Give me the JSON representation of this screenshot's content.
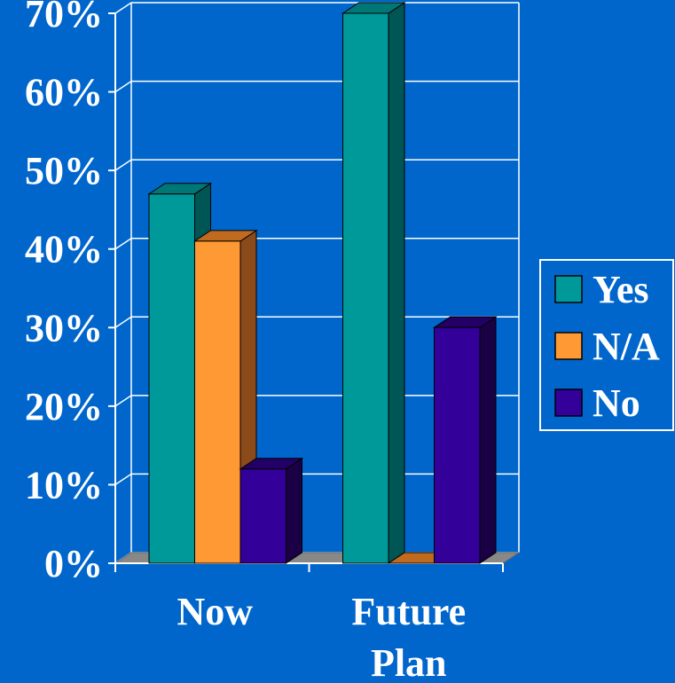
{
  "chart_data": {
    "type": "bar",
    "title": "",
    "xlabel": "",
    "ylabel": "",
    "categories": [
      [
        "Now"
      ],
      [
        "Future",
        "Plan"
      ]
    ],
    "y_ticks": [
      "0%",
      "10%",
      "20%",
      "30%",
      "40%",
      "50%",
      "60%",
      "70%"
    ],
    "ylim": [
      0,
      70
    ],
    "grid": true,
    "legend_position": "right",
    "series": [
      {
        "name": "Yes",
        "values": [
          47,
          70
        ],
        "color": "#009999",
        "side": "#005555",
        "top": "#007777"
      },
      {
        "name": "N/A",
        "values": [
          41,
          0
        ],
        "color": "#ff9933",
        "side": "#8a4a1a",
        "top": "#c06a20"
      },
      {
        "name": "No",
        "values": [
          12,
          30
        ],
        "color": "#330099",
        "side": "#1a0044",
        "top": "#220066"
      }
    ]
  },
  "colors": {
    "background": "#0066cc",
    "grid": "#ffffff",
    "floor": "#888888"
  }
}
